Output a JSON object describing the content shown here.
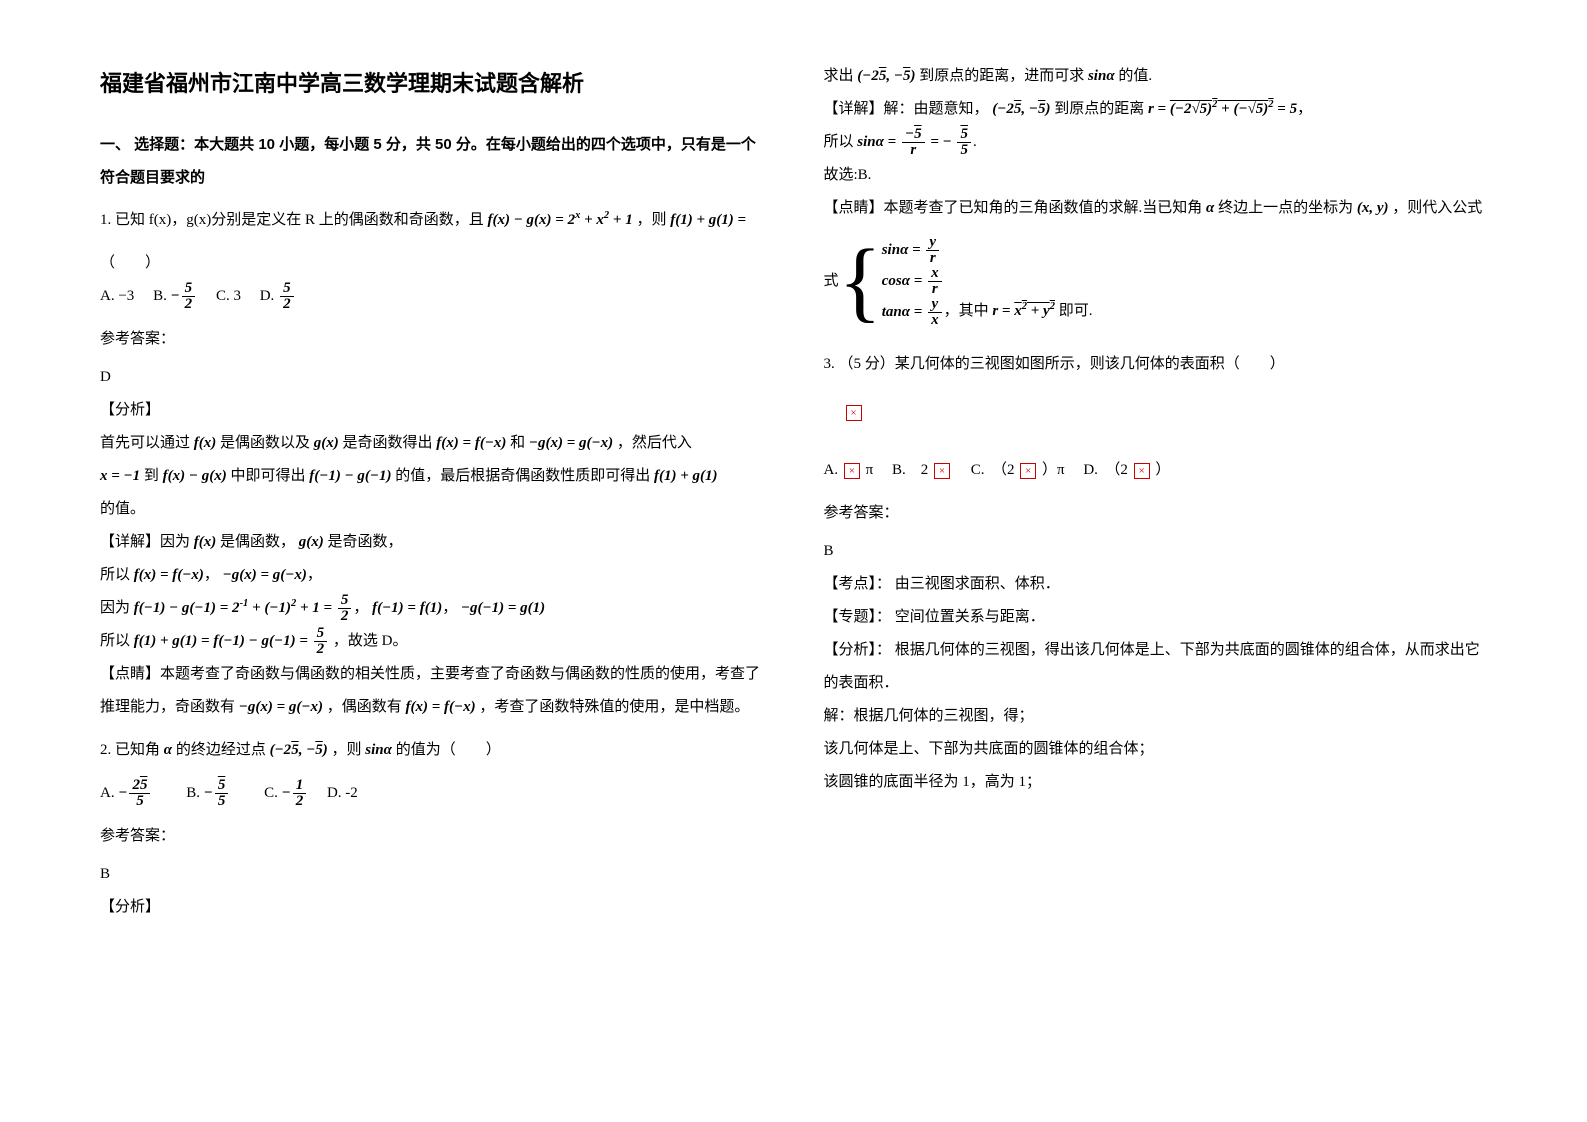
{
  "title": "福建省福州市江南中学高三数学理期末试题含解析",
  "section1": "一、 选择题：本大题共 10 小题，每小题 5 分，共 50 分。在每小题给出的四个选项中，只有是一个符合题目要求的",
  "q1": {
    "stem_a": "1. 已知 f(x)，g(x)分别是定义在 R 上的偶函数和奇函数，且",
    "expr1": "f(x) − g(x) = 2^x + x^2 + 1",
    "stem_b": "，则",
    "expr2": "f(1) + g(1) =",
    "blank": "（　　）",
    "opts": {
      "A": "A. −3",
      "B": "B.",
      "C": "C. 3",
      "D": "D."
    },
    "fracB_num": "5",
    "fracB_den": "2",
    "fracB_sign": "−",
    "fracD_num": "5",
    "fracD_den": "2"
  },
  "ans_label": "参考答案：",
  "q1ans": {
    "letter": "D",
    "fx_tag": "【分析】",
    "fx1a": "首先可以通过",
    "fx1b": "是偶函数以及",
    "fx1c": "是奇函数得出",
    "e_fx": "f(x)",
    "e_gx": "g(x)",
    "e_feq": "f(x) = f(−x)",
    "e_geq": "−g(x) = g(−x)",
    "fx1d": "，然后代入",
    "fx2a": "x = −1",
    "fx2b": "到",
    "fx2c": "中即可得出",
    "e_fmg": "f(x) − g(x)",
    "e_fmg1": "f(−1) − g(−1)",
    "fx2d": "的值，最后根据奇偶函数性质即可得出",
    "e_fpg1": "f(1) + g(1)",
    "fx2e": "的值。",
    "xj_tag": "【详解】因为",
    "xj_b": "是偶函数，",
    "xj_c": "是奇函数，",
    "xj2": "所以",
    "e_feq2": "f(x) = f(−x)",
    "e_geq2": "−g(x) = g(−x)",
    "yw": "因为",
    "e_val": "f(−1) − g(−1) = 2^{-1} + (−1)^2 + 1 =",
    "five_two_num": "5",
    "five_two_den": "2",
    "e_f1": "f(−1) = f(1)",
    "e_g1": "−g(−1) = g(1)",
    "sy": "所以",
    "e_sum": "f(1) + g(1) = f(−1) − g(−1) =",
    "sy_end": "，故选 D。",
    "ds_tag": "【点睛】本题考查了奇函数与偶函数的相关性质，主要考查了奇函数与偶函数的性质的使用，考查了推理能力，奇函数有",
    "ds_mid": "，偶函数有",
    "ds_end": "，考查了函数特殊值的使用，是中档题。",
    "e_odd": "−g(x) = g(−x)",
    "e_even": "f(x) = f(−x)"
  },
  "q2": {
    "stem_a": "2. 已知角",
    "alpha": "α",
    "stem_b": "的终边经过点",
    "pt": "(−2√5, −√5)",
    "stem_c": "，则",
    "sin": "sinα",
    "stem_d": "的值为（　　）",
    "A": "A.",
    "Anum": "2√5",
    "Aden": "5",
    "Asign": "−",
    "B": "B.",
    "Bnum": "√5",
    "Bden": "5",
    "Bsign": "−",
    "C": "C.",
    "Cnum": "1",
    "Cden": "2",
    "Csign": "−",
    "D": "D. -2"
  },
  "q2ans": {
    "letter": "B",
    "fx_tag": "【分析】",
    "r1a": "求出",
    "r1b": "到原点的距离，进而可求",
    "r1c": "的值.",
    "xj_tag": "【详解】解：由题意知，",
    "xj_b": "到原点的距离",
    "r_expr": "r = √((−2√5)^2 + (−√5)^2) = 5",
    "sy": "所以",
    "sin_expr_a": "sinα =",
    "sin_num1": "−√5",
    "sin_den1": "r",
    "sin_num2": "√5",
    "sin_den2": "5",
    "sin_sign2": "= −",
    "gx": "故选:B.",
    "ds_tag": "【点睛】本题考查了已知角的三角函数值的求解.当已知角",
    "ds_b": "终边上一点的坐标为",
    "xy": "(x, y)",
    "ds_c": "，则代入公式",
    "f_sin": "sinα =",
    "f_sin_num": "y",
    "f_sin_den": "r",
    "f_cos": "cosα =",
    "f_cos_num": "x",
    "f_cos_den": "r",
    "f_tan": "tanα =",
    "f_tan_num": "y",
    "f_tan_den": "x",
    "ds_mid": "，其中",
    "r_def": "r = √(x^2 + y^2)",
    "ds_end": "即可."
  },
  "q3": {
    "stem": "3. （5 分）某几何体的三视图如图所示，则该几何体的表面积（　　）",
    "A": "A.",
    "A2": "π",
    "B": "B.　2",
    "C": "C.　（2",
    "C2": "）π",
    "D": "D.　（2",
    "D2": "）"
  },
  "q3ans": {
    "letter": "B",
    "kd": "【考点】： 由三视图求面积、体积．",
    "zt": "【专题】： 空间位置关系与距离．",
    "fx": "【分析】： 根据几何体的三视图，得出该几何体是上、下部为共底面的圆锥体的组合体，从而求出它的表面积．",
    "j1": "解：根据几何体的三视图，得；",
    "j2": "该几何体是上、下部为共底面的圆锥体的组合体；",
    "j3": "该圆锥的底面半径为 1，高为 1；"
  },
  "img_ph": "×"
}
